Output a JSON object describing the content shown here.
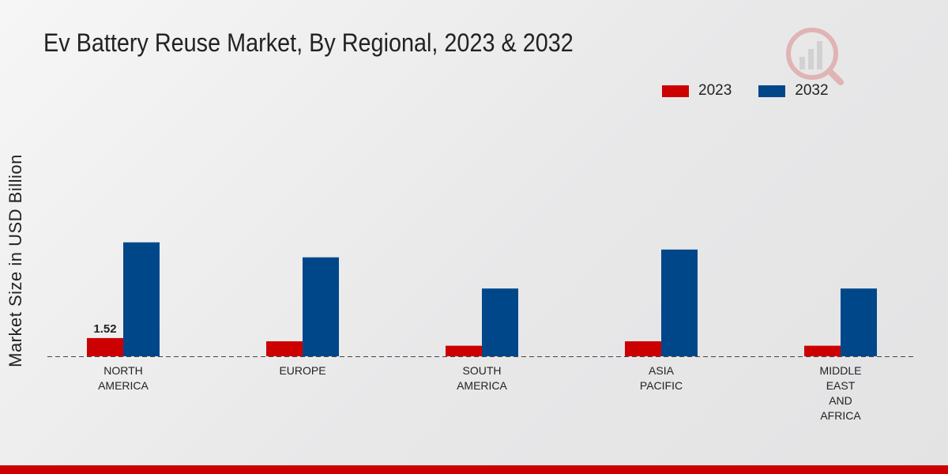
{
  "chart_data": {
    "type": "bar",
    "title": "Ev Battery Reuse Market, By Regional, 2023 & 2032",
    "xlabel": "",
    "ylabel": "Market Size in USD Billion",
    "ylim": [
      0,
      12
    ],
    "categories": [
      [
        "NORTH",
        "AMERICA"
      ],
      [
        "EUROPE"
      ],
      [
        "SOUTH",
        "AMERICA"
      ],
      [
        "ASIA",
        "PACIFIC"
      ],
      [
        "MIDDLE",
        "EAST",
        "AND",
        "AFRICA"
      ]
    ],
    "series": [
      {
        "name": "2023",
        "color": "#cc0000",
        "values": [
          1.52,
          1.25,
          0.88,
          1.25,
          0.88
        ]
      },
      {
        "name": "2032",
        "color": "#00478a",
        "values": [
          9.5,
          8.25,
          5.65,
          8.9,
          5.65
        ]
      }
    ],
    "data_labels": [
      {
        "series": 0,
        "index": 0,
        "text": "1.52"
      }
    ],
    "legend_position": "top-right",
    "grid": false
  }
}
